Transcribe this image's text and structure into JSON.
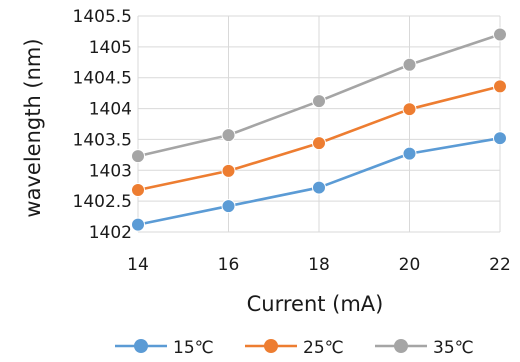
{
  "chart_data": {
    "type": "line",
    "x": [
      14,
      16,
      18,
      20,
      22
    ],
    "x_ticks": [
      "14",
      "16",
      "18",
      "20",
      "22"
    ],
    "y_ticks": [
      "1402",
      "1402.5",
      "1403",
      "1403.5",
      "1404",
      "1404.5",
      "1405",
      "1405.5"
    ],
    "xlabel": "Current (mA)",
    "ylabel": "wavelength (nm)",
    "ylim": [
      1402,
      1405.5
    ],
    "grid": true,
    "legend_position": "bottom",
    "series": [
      {
        "name": "15℃",
        "color": "#5b9bd5",
        "values": [
          1402.12,
          1402.42,
          1402.72,
          1403.27,
          1403.52
        ]
      },
      {
        "name": "25℃",
        "color": "#ed7d31",
        "values": [
          1402.68,
          1402.99,
          1403.44,
          1403.99,
          1404.36
        ]
      },
      {
        "name": "35℃",
        "color": "#a5a5a5",
        "values": [
          1403.23,
          1403.57,
          1404.12,
          1404.71,
          1405.2
        ]
      }
    ]
  }
}
